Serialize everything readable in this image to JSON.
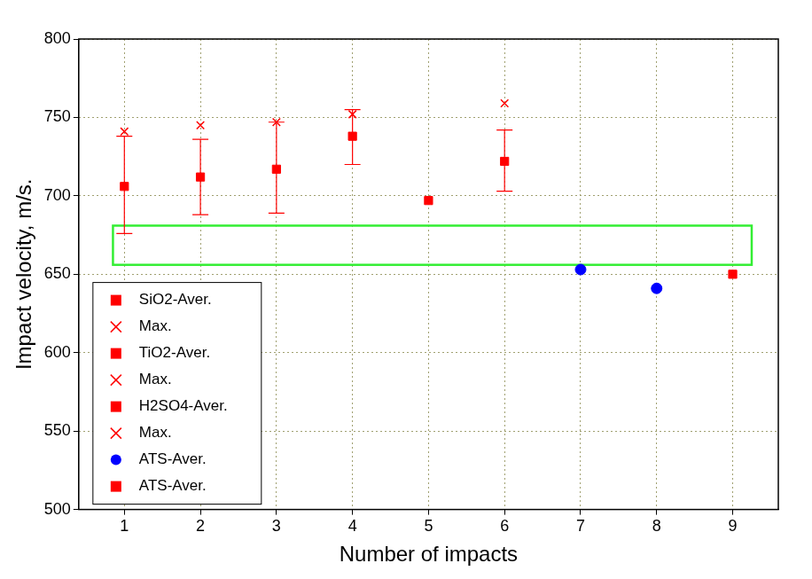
{
  "chart_data": {
    "type": "scatter",
    "x_label": "Number of impacts",
    "y_label": "Impact velocity, m/s.",
    "xlim": [
      0.4,
      9.6
    ],
    "xticks": [
      1,
      2,
      3,
      4,
      5,
      6,
      7,
      8,
      9
    ],
    "ylim": [
      500,
      800
    ],
    "yticks": [
      500,
      550,
      600,
      650,
      700,
      750,
      800
    ],
    "grid": true,
    "legend": "lower left",
    "band": {
      "x": [
        0.85,
        9.25
      ],
      "y": [
        656,
        681
      ],
      "color": "#33ee33"
    },
    "series": [
      {
        "name": "SiO2-Aver.",
        "color": "#ff0000",
        "marker": "square",
        "x": [
          1,
          2
        ],
        "values": [
          706,
          712
        ],
        "error_bars": [
          [
            676,
            738
          ],
          [
            688,
            736
          ]
        ]
      },
      {
        "name": "Max.",
        "color": "#ff0000",
        "marker": "cross",
        "x": [
          1,
          2
        ],
        "values": [
          741,
          745
        ]
      },
      {
        "name": "TiO2-Aver.",
        "color": "#ff0000",
        "marker": "square",
        "x": [
          3,
          4
        ],
        "values": [
          717,
          738
        ],
        "error_bars": [
          [
            689,
            747
          ],
          [
            720,
            755
          ]
        ]
      },
      {
        "name": "Max.",
        "color": "#ff0000",
        "marker": "cross",
        "x": [
          3,
          4
        ],
        "values": [
          747,
          752
        ]
      },
      {
        "name": "H2SO4-Aver.",
        "color": "#ff0000",
        "marker": "square",
        "x": [
          5,
          6
        ],
        "values": [
          697,
          722
        ],
        "error_bars": [
          null,
          [
            703,
            742
          ]
        ]
      },
      {
        "name": "Max.",
        "color": "#ff0000",
        "marker": "cross",
        "x": [
          6
        ],
        "values": [
          759
        ]
      },
      {
        "name": "ATS-Aver.",
        "color": "#0000ff",
        "marker": "circle",
        "x": [
          7,
          8
        ],
        "values": [
          653,
          641
        ]
      },
      {
        "name": "ATS-Aver.",
        "color": "#ff0000",
        "marker": "square",
        "x": [
          9
        ],
        "values": [
          650
        ]
      }
    ]
  }
}
